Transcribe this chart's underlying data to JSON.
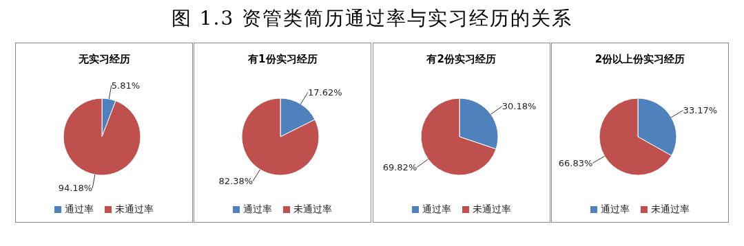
{
  "chart_data": [
    {
      "type": "other",
      "title": "图 1.3  资管类简历通过率与实习经历的关系"
    },
    {
      "type": "pie",
      "title": "无实习经历",
      "categories": [
        "通过率",
        "未通过率"
      ],
      "values": [
        5.81,
        94.18
      ],
      "value_labels": [
        "5.81%",
        "94.18%"
      ],
      "colors": [
        "#4f81bd",
        "#c0504d"
      ],
      "legend": "bottom"
    },
    {
      "type": "pie",
      "title": "有1份实习经历",
      "categories": [
        "通过率",
        "未通过率"
      ],
      "values": [
        17.62,
        82.38
      ],
      "value_labels": [
        "17.62%",
        "82.38%"
      ],
      "colors": [
        "#4f81bd",
        "#c0504d"
      ],
      "legend": "bottom"
    },
    {
      "type": "pie",
      "title": "有2份实习经历",
      "categories": [
        "通过率",
        "未通过率"
      ],
      "values": [
        30.18,
        69.82
      ],
      "value_labels": [
        "30.18%",
        "69.82%"
      ],
      "colors": [
        "#4f81bd",
        "#c0504d"
      ],
      "legend": "bottom"
    },
    {
      "type": "pie",
      "title": "2份以上份实习经历",
      "categories": [
        "通过率",
        "未通过率"
      ],
      "values": [
        33.17,
        66.83
      ],
      "value_labels": [
        "33.17%",
        "66.83%"
      ],
      "colors": [
        "#4f81bd",
        "#c0504d"
      ],
      "legend": "bottom"
    }
  ]
}
